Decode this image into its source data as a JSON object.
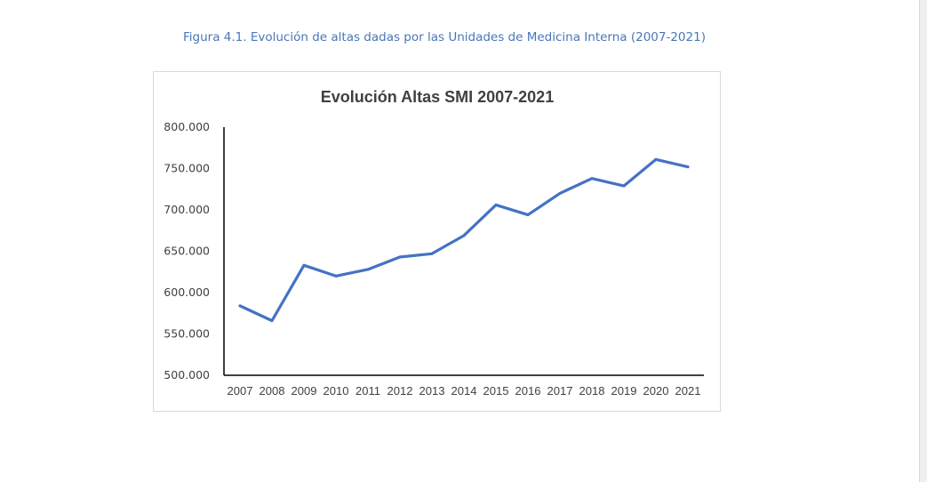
{
  "caption": "Figura 4.1. Evolución de altas dadas por las Unidades de Medicina Interna (2007-2021)",
  "chart_data": {
    "type": "line",
    "title": "Evolución Altas SMI 2007-2021",
    "xlabel": "",
    "ylabel": "",
    "x": [
      2007,
      2008,
      2009,
      2010,
      2011,
      2012,
      2013,
      2014,
      2015,
      2016,
      2017,
      2018,
      2019,
      2020,
      2021
    ],
    "series": [
      {
        "values": [
          584000,
          566000,
          633000,
          620000,
          628000,
          643000,
          647000,
          669000,
          706000,
          694000,
          720000,
          738000,
          729000,
          761000,
          752000
        ]
      }
    ],
    "ylim": [
      500000,
      800000
    ],
    "yticks": [
      500000,
      550000,
      600000,
      650000,
      700000,
      750000,
      800000
    ],
    "ytick_labels": [
      "500.000",
      "550.000",
      "600.000",
      "650.000",
      "700.000",
      "750.000",
      "800.000"
    ],
    "line_color": "#4472c4",
    "grid": false,
    "legend": "none"
  }
}
